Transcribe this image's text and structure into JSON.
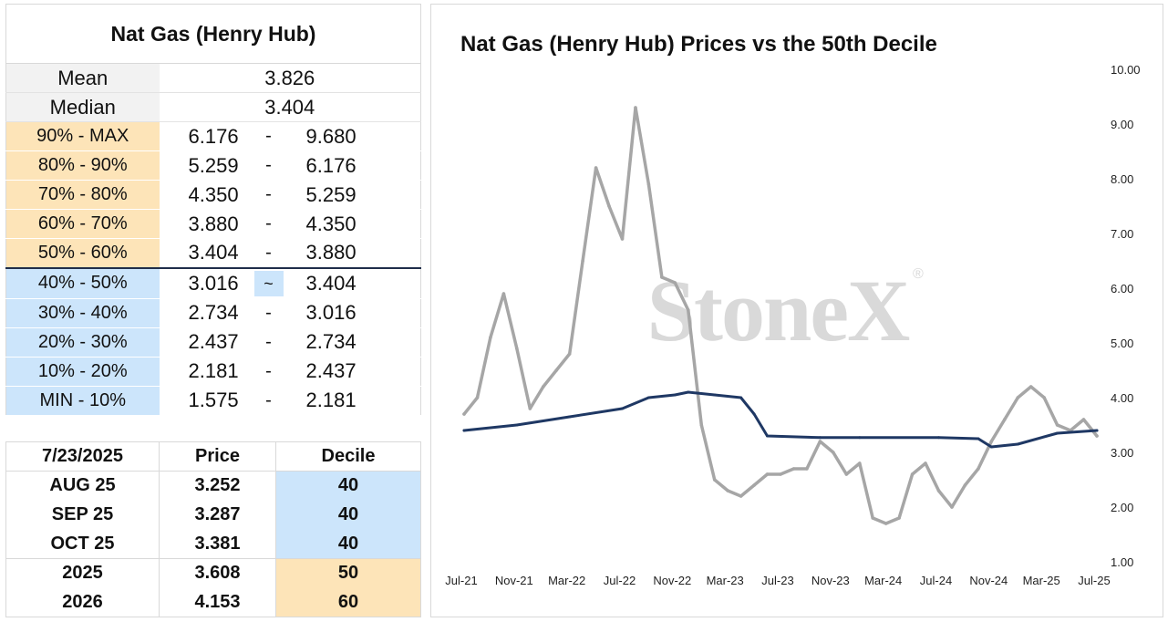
{
  "deciles_table": {
    "title": "Nat Gas (Henry Hub)",
    "mean_label": "Mean",
    "mean_value": "3.826",
    "median_label": "Median",
    "median_value": "3.404",
    "rows": [
      {
        "label": "90% - MAX",
        "low": "6.176",
        "sep": "-",
        "high": "9.680",
        "color": "orange"
      },
      {
        "label": "80% - 90%",
        "low": "5.259",
        "sep": "-",
        "high": "6.176",
        "color": "orange"
      },
      {
        "label": "70% - 80%",
        "low": "4.350",
        "sep": "-",
        "high": "5.259",
        "color": "orange"
      },
      {
        "label": "60% - 70%",
        "low": "3.880",
        "sep": "-",
        "high": "4.350",
        "color": "orange"
      },
      {
        "label": "50% - 60%",
        "low": "3.404",
        "sep": "-",
        "high": "3.880",
        "color": "orange"
      },
      {
        "label": "40% - 50%",
        "low": "3.016",
        "sep": "~",
        "high": "3.404",
        "color": "blue"
      },
      {
        "label": "30% - 40%",
        "low": "2.734",
        "sep": "-",
        "high": "3.016",
        "color": "blue"
      },
      {
        "label": "20% - 30%",
        "low": "2.437",
        "sep": "-",
        "high": "2.734",
        "color": "blue"
      },
      {
        "label": "10% - 20%",
        "low": "2.181",
        "sep": "-",
        "high": "2.437",
        "color": "blue"
      },
      {
        "label": "MIN - 10%",
        "low": "1.575",
        "sep": "-",
        "high": "2.181",
        "color": "blue"
      }
    ]
  },
  "futures_table": {
    "date": "7/23/2025",
    "price_header": "Price",
    "decile_header": "Decile",
    "rows": [
      {
        "name": "AUG 25",
        "price": "3.252",
        "decile": "40",
        "color": "blue"
      },
      {
        "name": "SEP 25",
        "price": "3.287",
        "decile": "40",
        "color": "blue"
      },
      {
        "name": "OCT 25",
        "price": "3.381",
        "decile": "40",
        "color": "blue"
      },
      {
        "name": "2025",
        "price": "3.608",
        "decile": "50",
        "color": "orange"
      },
      {
        "name": "2026",
        "price": "4.153",
        "decile": "60",
        "color": "orange"
      }
    ]
  },
  "colors": {
    "orange_fill": "#fde4b8",
    "blue_fill": "#cce5fb",
    "price_line": "#a6a6a6",
    "median_line": "#1f3864"
  },
  "watermark": {
    "text": "StoneX",
    "mark": "®"
  },
  "chart_data": {
    "type": "line",
    "title": "Nat Gas (Henry Hub) Prices vs the 50th Decile",
    "y_axis_side": "right",
    "ylim": [
      1.0,
      10.0
    ],
    "y_ticks": [
      "1.00",
      "2.00",
      "3.00",
      "4.00",
      "5.00",
      "6.00",
      "7.00",
      "8.00",
      "9.00",
      "10.00"
    ],
    "x_ticks": [
      "Jul-21",
      "Nov-21",
      "Mar-22",
      "Jul-22",
      "Nov-22",
      "Mar-23",
      "Jul-23",
      "Nov-23",
      "Mar-24",
      "Jul-24",
      "Nov-24",
      "Mar-25",
      "Jul-25"
    ],
    "grid": false,
    "legend": "none",
    "series": [
      {
        "role": "price",
        "x": [
          "2021-07",
          "2021-08",
          "2021-09",
          "2021-10",
          "2021-11",
          "2021-12",
          "2022-01",
          "2022-02",
          "2022-03",
          "2022-04",
          "2022-05",
          "2022-06",
          "2022-07",
          "2022-08",
          "2022-09",
          "2022-10",
          "2022-11",
          "2022-12",
          "2023-01",
          "2023-02",
          "2023-03",
          "2023-04",
          "2023-05",
          "2023-06",
          "2023-07",
          "2023-08",
          "2023-09",
          "2023-10",
          "2023-11",
          "2023-12",
          "2024-01",
          "2024-02",
          "2024-03",
          "2024-04",
          "2024-05",
          "2024-06",
          "2024-07",
          "2024-08",
          "2024-09",
          "2024-10",
          "2024-11",
          "2024-12",
          "2025-01",
          "2025-02",
          "2025-03",
          "2025-04",
          "2025-05",
          "2025-06",
          "2025-07"
        ],
        "values": [
          3.7,
          4.0,
          5.1,
          5.9,
          4.9,
          3.8,
          4.2,
          4.5,
          4.8,
          6.5,
          8.2,
          7.5,
          6.9,
          9.3,
          7.9,
          6.2,
          6.1,
          5.6,
          3.5,
          2.5,
          2.3,
          2.2,
          2.4,
          2.6,
          2.6,
          2.7,
          2.7,
          3.2,
          3.0,
          2.6,
          2.8,
          1.8,
          1.7,
          1.8,
          2.6,
          2.8,
          2.3,
          2.0,
          2.4,
          2.7,
          3.2,
          3.6,
          4.0,
          4.2,
          4.0,
          3.5,
          3.4,
          3.6,
          3.3
        ]
      },
      {
        "role": "50th decile",
        "x": [
          "2021-07",
          "2021-11",
          "2022-03",
          "2022-07",
          "2022-09",
          "2022-11",
          "2022-12",
          "2023-02",
          "2023-04",
          "2023-05",
          "2023-06",
          "2023-10",
          "2024-01",
          "2024-07",
          "2024-10",
          "2024-11",
          "2025-01",
          "2025-04",
          "2025-07"
        ],
        "values": [
          3.4,
          3.5,
          3.65,
          3.8,
          4.0,
          4.05,
          4.1,
          4.05,
          4.0,
          3.7,
          3.3,
          3.27,
          3.27,
          3.27,
          3.25,
          3.1,
          3.15,
          3.35,
          3.4
        ]
      }
    ]
  }
}
